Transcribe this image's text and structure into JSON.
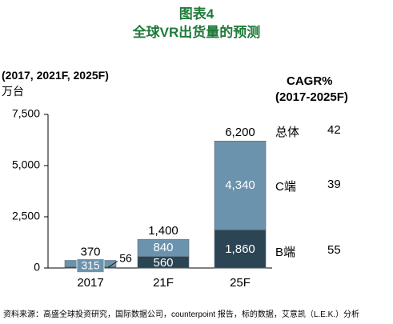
{
  "chart_data": {
    "type": "bar",
    "stacked": true,
    "title": "图表4",
    "subtitle": "全球VR出货量的预测",
    "period_label": "(2017, 2021F, 2025F)",
    "unit_label": "万台",
    "categories": [
      "2017",
      "21F",
      "25F"
    ],
    "series": [
      {
        "name": "B端",
        "values": [
          56,
          560,
          1860
        ],
        "color": "#2c4555",
        "labels": [
          "56",
          "560",
          "1,860"
        ]
      },
      {
        "name": "C端",
        "values": [
          315,
          840,
          4340
        ],
        "color": "#6c93ad",
        "labels": [
          "315",
          "840",
          "4,340"
        ]
      }
    ],
    "totals": [
      370,
      1400,
      6200
    ],
    "total_labels": [
      "370",
      "1,400",
      "6,200"
    ],
    "ylim": [
      0,
      7500
    ],
    "yticks": [
      0,
      2500,
      5000,
      7500
    ],
    "ytick_labels": [
      "0",
      "2,500",
      "5,000",
      "7,500"
    ],
    "cagr": {
      "header_line1": "CAGR%",
      "header_line2": "(2017-2025F)",
      "rows": [
        {
          "label": "总体",
          "value": "42"
        },
        {
          "label": "C端",
          "value": "39"
        },
        {
          "label": "B端",
          "value": "55"
        }
      ]
    },
    "grid": false,
    "legend": "none"
  },
  "source": "资料来源：高盛全球投资研究，国际数据公司，counterpoint 报告，标的数据，艾意凯（L.E.K.）分析"
}
